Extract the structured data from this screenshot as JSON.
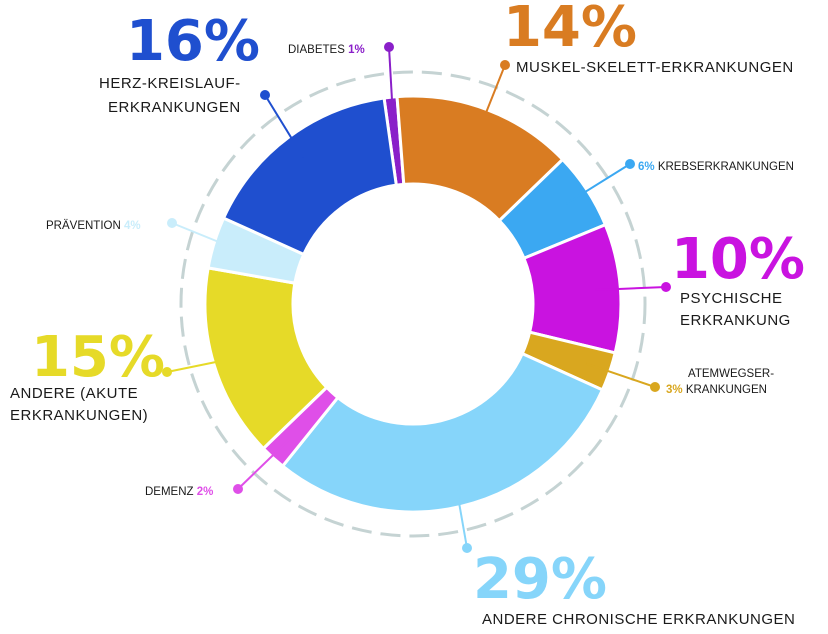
{
  "chart_data": {
    "type": "pie",
    "style": "donut",
    "title": "",
    "grid": false,
    "legend": "none",
    "slices": [
      {
        "key": "diabetes",
        "value": 1,
        "pct": "1%",
        "label_lines": [
          "DIABETES"
        ],
        "color": "#8a1fc9"
      },
      {
        "key": "muskel",
        "value": 14,
        "pct": "14%",
        "label_lines": [
          "MUSKEL-SKELETT-ERKRANKUNGEN"
        ],
        "color": "#d97c22"
      },
      {
        "key": "krebs",
        "value": 6,
        "pct": "6%",
        "label_lines": [
          "KREBSERKRANKUNGEN"
        ],
        "color": "#3ba8f2"
      },
      {
        "key": "psychische",
        "value": 10,
        "pct": "10%",
        "label_lines": [
          "PSYCHISCHE",
          "ERKRANKUNG"
        ],
        "color": "#c913e0"
      },
      {
        "key": "atemwegs",
        "value": 3,
        "pct": "3%",
        "label_lines": [
          "ATEMWEGSER-",
          "KRANKUNGEN"
        ],
        "color": "#d9a71f"
      },
      {
        "key": "chronische",
        "value": 29,
        "pct": "29%",
        "label_lines": [
          "ANDERE CHRONISCHE ERKRANKUNGEN"
        ],
        "color": "#86d5fa"
      },
      {
        "key": "demenz",
        "value": 2,
        "pct": "2%",
        "label_lines": [
          "DEMENZ"
        ],
        "color": "#df4fe8"
      },
      {
        "key": "akute",
        "value": 15,
        "pct": "15%",
        "label_lines": [
          "ANDERE (AKUTE",
          "ERKRANKUNGEN)"
        ],
        "color": "#e6da28"
      },
      {
        "key": "praevention",
        "value": 4,
        "pct": "4%",
        "label_lines": [
          "PRÄVENTION"
        ],
        "color": "#c9edfb"
      },
      {
        "key": "herz",
        "value": 16,
        "pct": "16%",
        "label_lines": [
          "HERZ-KREISLAUF-",
          "ERKRANKUNGEN"
        ],
        "color": "#1f4fcf"
      }
    ]
  }
}
